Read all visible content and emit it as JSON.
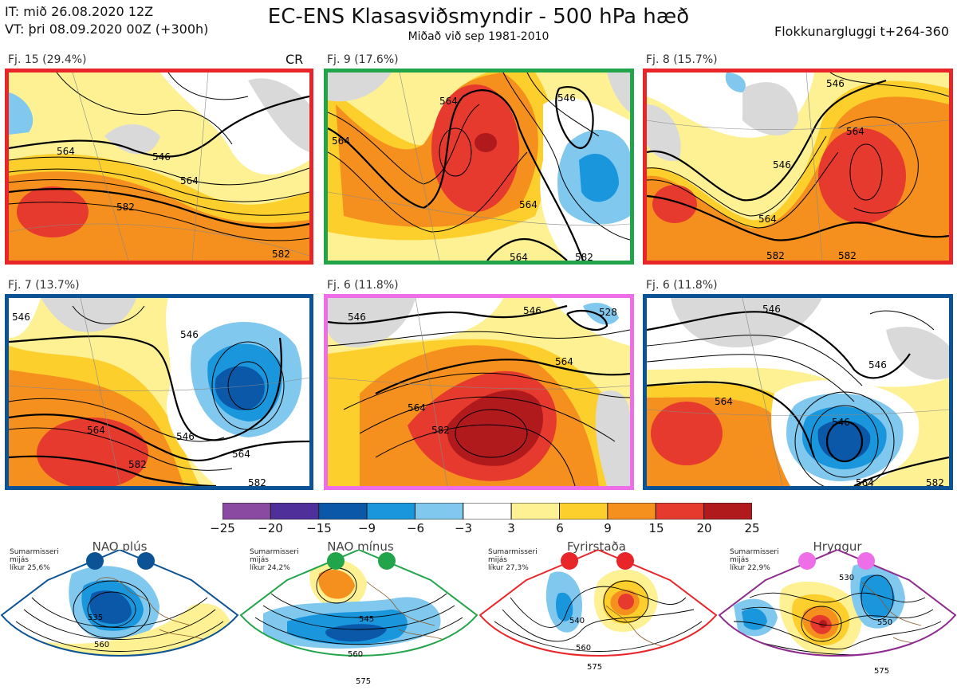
{
  "header": {
    "it_line": "IT: mið 26.08.2020 12Z",
    "vt_line": "VT: þri 08.09.2020 00Z  (+300h)",
    "title": "EC-ENS Klasasviðsmyndir - 500 hPa hæð",
    "subtitle": "Miðað við sep 1981-2010",
    "window": "Flokkunargluggi t+264-360"
  },
  "panels": [
    {
      "label": "Fj. 15 (29.4%)",
      "border": "#e8262a",
      "extra": "CR",
      "contours": [
        "564",
        "546",
        "564",
        "582",
        "582"
      ]
    },
    {
      "label": "Fj. 9 (17.6%)",
      "border": "#21a44a",
      "contours": [
        "564",
        "546",
        "564",
        "564",
        "582",
        "564"
      ]
    },
    {
      "label": "Fj. 8 (15.7%)",
      "border": "#e8262a",
      "contours": [
        "546",
        "564",
        "546",
        "564",
        "582",
        "582"
      ]
    },
    {
      "label": "Fj. 7 (13.7%)",
      "border": "#0b5394",
      "contours": [
        "546",
        "546",
        "546",
        "564",
        "564",
        "582",
        "582"
      ]
    },
    {
      "label": "Fj. 6 (11.8%)",
      "border": "#ee6ee8",
      "contours": [
        "546",
        "546",
        "528",
        "564",
        "564",
        "582"
      ]
    },
    {
      "label": "Fj. 6 (11.8%)",
      "border": "#0b5394",
      "contours": [
        "546",
        "546",
        "564",
        "546",
        "564",
        "582"
      ]
    }
  ],
  "colorbar": {
    "labels": [
      "−25",
      "−20",
      "−15",
      "−9",
      "−6",
      "−3",
      "3",
      "6",
      "9",
      "15",
      "20",
      "25"
    ],
    "colors": [
      "#8b4aa1",
      "#4f2f99",
      "#0b57a8",
      "#1996dc",
      "#81c8ef",
      "#ffffff",
      "#fdf194",
      "#fdcf2c",
      "#f5901f",
      "#e63a2e",
      "#b11a1d"
    ]
  },
  "regimes": [
    {
      "name": "NAO plús",
      "note": [
        "Sumarmisseri",
        "mijás",
        "líkur 25,6%"
      ],
      "color": "#0b5394",
      "dot": "#0b5394",
      "values": [
        "535",
        "560"
      ]
    },
    {
      "name": "NAO mínus",
      "note": [
        "Sumarmisseri",
        "mijás",
        "líkur 24,2%"
      ],
      "color": "#21a44a",
      "dot": "#21a44a",
      "values": [
        "545",
        "560",
        "575"
      ]
    },
    {
      "name": "Fyrirstaða",
      "note": [
        "Sumarmisseri",
        "mijás",
        "líkur 27,3%"
      ],
      "color": "#e8262a",
      "dot": "#e8262a",
      "values": [
        "540",
        "560",
        "575"
      ]
    },
    {
      "name": "Hryggur",
      "note": [
        "Sumarmisseri",
        "mijás",
        "líkur 22,9%"
      ],
      "color": "#8e2a8e",
      "dot": "#ee6ee8",
      "values": [
        "530",
        "550",
        "575"
      ]
    }
  ]
}
